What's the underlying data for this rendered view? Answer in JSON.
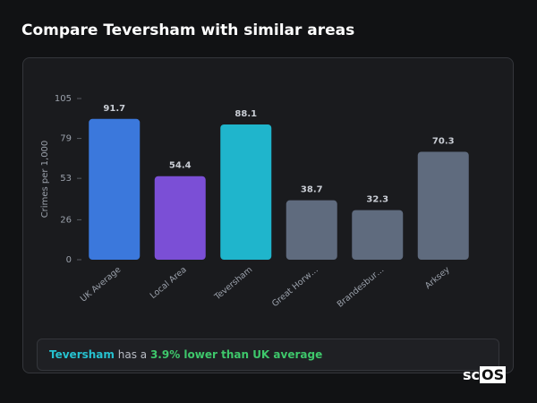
{
  "header": {
    "title": "Compare Teversham with similar areas"
  },
  "chart_data": {
    "type": "bar",
    "y_label": "Crimes per 1,000",
    "categories": [
      "UK Average",
      "Local Area",
      "Teversham",
      "Great Horw…",
      "Brandesbur…",
      "Arksey"
    ],
    "values": [
      91.7,
      54.4,
      88.1,
      38.7,
      32.3,
      70.3
    ],
    "colors": [
      "#3b78dc",
      "#7b4fd6",
      "#1fb5cc",
      "#5f6b7e",
      "#5f6b7e",
      "#5f6b7e"
    ],
    "ylim": [
      0,
      105
    ],
    "yticks": [
      0,
      26,
      53,
      79,
      105
    ],
    "grid": false
  },
  "note": {
    "area": "Teversham",
    "text": "has a",
    "highlight": "3.9% lower than UK average"
  },
  "brand": [
    "sc",
    "OS"
  ]
}
